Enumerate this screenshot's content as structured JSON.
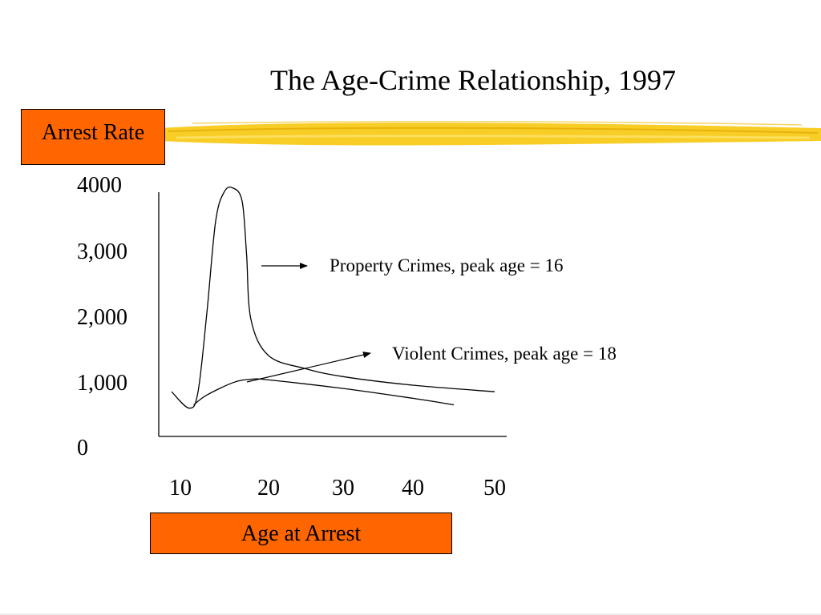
{
  "title": "The Age-Crime Relationship, 1997",
  "accent_color": "#ff6600",
  "highlight_color": "#f7c400",
  "chart_data": {
    "type": "line",
    "title": "The Age-Crime Relationship, 1997",
    "ylabel": "Arrest Rate",
    "xlabel": "Age at Arrest",
    "y_tick_labels": [
      "0",
      "1,000",
      "2,000",
      "3,000",
      "4000"
    ],
    "x_tick_labels": [
      "10",
      "20",
      "30",
      "40",
      "50"
    ],
    "y_ticks": [
      0,
      1000,
      2000,
      3000,
      4000
    ],
    "x_ticks": [
      10,
      20,
      30,
      40,
      50
    ],
    "ylim": [
      0,
      4000
    ],
    "grid": false,
    "series": [
      {
        "name": "Property Crimes",
        "points": [
          [
            9,
            900
          ],
          [
            11,
            650
          ],
          [
            12,
            900
          ],
          [
            13,
            2100
          ],
          [
            14,
            3500
          ],
          [
            15,
            3950
          ],
          [
            16,
            4000
          ],
          [
            17,
            3800
          ],
          [
            17.5,
            3000
          ],
          [
            18,
            2000
          ],
          [
            20,
            1450
          ],
          [
            25,
            1250
          ],
          [
            30,
            1130
          ],
          [
            40,
            1000
          ],
          [
            50,
            900
          ]
        ]
      },
      {
        "name": "Violent Crimes",
        "points": [
          [
            11.5,
            700
          ],
          [
            13,
            850
          ],
          [
            16,
            1040
          ],
          [
            18,
            1090
          ],
          [
            20,
            1080
          ],
          [
            30,
            950
          ],
          [
            40,
            800
          ],
          [
            45,
            700
          ]
        ]
      }
    ],
    "annotations": [
      {
        "text": "Property Crimes, peak age = 16",
        "series": "Property Crimes",
        "peak_age": 16
      },
      {
        "text": "Violent Crimes, peak age = 18",
        "series": "Violent Crimes",
        "peak_age": 18
      }
    ]
  }
}
